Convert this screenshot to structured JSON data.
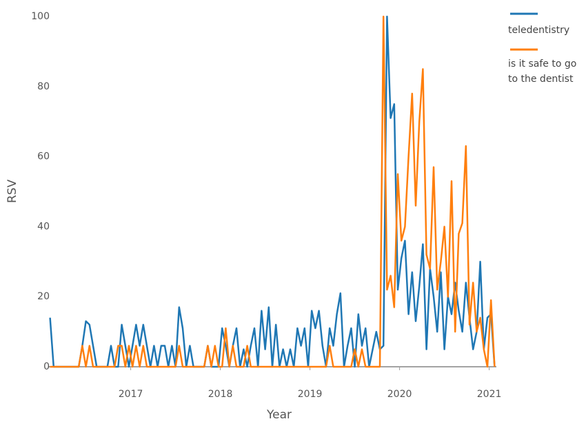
{
  "chart_data": {
    "type": "line",
    "x_label": "Year",
    "y_label": "RSV",
    "x": [
      2016.1,
      2016.14,
      2016.18,
      2016.22,
      2016.26,
      2016.3,
      2016.34,
      2016.38,
      2016.42,
      2016.46,
      2016.5,
      2016.54,
      2016.58,
      2016.62,
      2016.66,
      2016.7,
      2016.74,
      2016.78,
      2016.82,
      2016.86,
      2016.9,
      2016.94,
      2016.98,
      2017.02,
      2017.06,
      2017.1,
      2017.14,
      2017.18,
      2017.22,
      2017.26,
      2017.3,
      2017.34,
      2017.38,
      2017.42,
      2017.46,
      2017.5,
      2017.54,
      2017.58,
      2017.62,
      2017.66,
      2017.7,
      2017.74,
      2017.78,
      2017.82,
      2017.86,
      2017.9,
      2017.94,
      2017.98,
      2018.02,
      2018.06,
      2018.1,
      2018.14,
      2018.18,
      2018.22,
      2018.26,
      2018.3,
      2018.34,
      2018.38,
      2018.42,
      2018.46,
      2018.5,
      2018.54,
      2018.58,
      2018.62,
      2018.66,
      2018.7,
      2018.74,
      2018.78,
      2018.82,
      2018.86,
      2018.9,
      2018.94,
      2018.98,
      2019.02,
      2019.06,
      2019.1,
      2019.14,
      2019.18,
      2019.22,
      2019.26,
      2019.3,
      2019.34,
      2019.38,
      2019.42,
      2019.46,
      2019.5,
      2019.54,
      2019.58,
      2019.62,
      2019.66,
      2019.7,
      2019.74,
      2019.78,
      2019.82,
      2019.86,
      2019.9,
      2019.94,
      2019.98,
      2020.02,
      2020.06,
      2020.1,
      2020.14,
      2020.18,
      2020.22,
      2020.26,
      2020.3,
      2020.34,
      2020.38,
      2020.42,
      2020.46,
      2020.5,
      2020.54,
      2020.58,
      2020.62,
      2020.66,
      2020.7,
      2020.74,
      2020.78,
      2020.82,
      2020.86,
      2020.9,
      2020.94,
      2020.98,
      2021.02,
      2021.06
    ],
    "series": [
      {
        "name": "teledentistry",
        "color": "#1f77b4",
        "values": [
          14,
          0,
          0,
          0,
          0,
          0,
          0,
          0,
          0,
          6,
          13,
          12,
          6,
          0,
          0,
          0,
          0,
          6,
          0,
          0,
          12,
          6,
          0,
          6,
          12,
          6,
          12,
          6,
          0,
          6,
          0,
          6,
          6,
          0,
          6,
          0,
          17,
          11,
          0,
          6,
          0,
          0,
          0,
          0,
          6,
          0,
          0,
          0,
          11,
          6,
          0,
          6,
          11,
          0,
          5,
          0,
          6,
          11,
          0,
          16,
          5,
          17,
          0,
          12,
          0,
          5,
          0,
          5,
          0,
          11,
          6,
          11,
          0,
          16,
          11,
          16,
          6,
          0,
          11,
          6,
          15,
          21,
          0,
          6,
          11,
          0,
          15,
          6,
          11,
          0,
          5,
          10,
          5,
          6,
          100,
          71,
          75,
          22,
          31,
          36,
          15,
          27,
          13,
          23,
          35,
          5,
          28,
          20,
          10,
          27,
          5,
          20,
          15,
          24,
          16,
          10,
          24,
          14,
          5,
          10,
          30,
          5,
          14,
          15,
          0
        ]
      },
      {
        "name": "is it safe to go to the dentist",
        "color": "#ff7f0e",
        "values": [
          0,
          0,
          0,
          0,
          0,
          0,
          0,
          0,
          0,
          6,
          0,
          6,
          0,
          0,
          0,
          0,
          0,
          0,
          0,
          6,
          6,
          0,
          6,
          0,
          6,
          0,
          6,
          0,
          0,
          0,
          0,
          0,
          0,
          0,
          0,
          0,
          6,
          0,
          0,
          0,
          0,
          0,
          0,
          0,
          6,
          0,
          6,
          0,
          0,
          11,
          0,
          6,
          0,
          0,
          0,
          6,
          0,
          0,
          0,
          0,
          0,
          0,
          0,
          0,
          0,
          0,
          0,
          0,
          0,
          0,
          0,
          0,
          0,
          0,
          0,
          0,
          0,
          0,
          6,
          0,
          0,
          0,
          0,
          0,
          0,
          5,
          0,
          5,
          0,
          0,
          0,
          0,
          0,
          100,
          22,
          26,
          17,
          55,
          36,
          40,
          60,
          78,
          46,
          70,
          85,
          32,
          28,
          57,
          22,
          30,
          40,
          20,
          53,
          10,
          38,
          41,
          63,
          12,
          24,
          10,
          14,
          5,
          0,
          19,
          0
        ]
      }
    ],
    "xlim": [
      2016.08,
      2021.08
    ],
    "xticks": [
      2017,
      2018,
      2019,
      2020,
      2021
    ],
    "ylim": [
      0,
      100
    ],
    "yticks": [
      0,
      20,
      40,
      60,
      80,
      100
    ]
  }
}
